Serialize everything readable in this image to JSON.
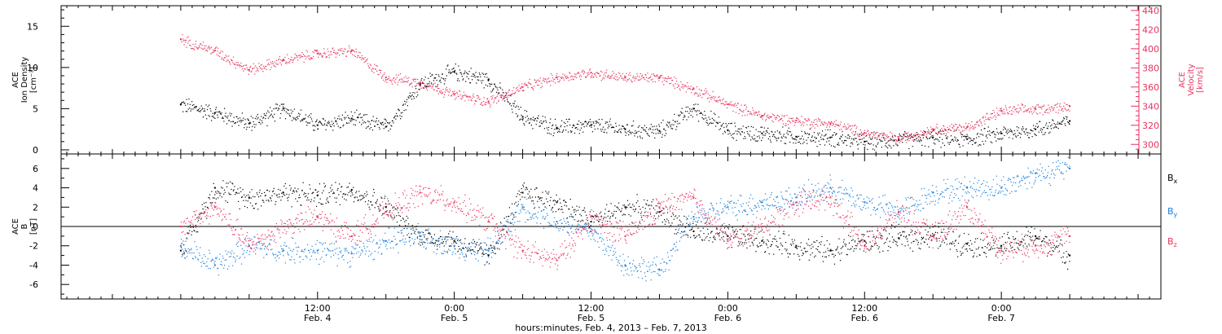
{
  "chart_data": [
    {
      "type": "scatter",
      "panel": "top",
      "ylabel_left": [
        "ACE",
        "Ion Density",
        "[cm⁻³]"
      ],
      "ylabel_right": [
        "ACE",
        "Velocity",
        "[km/s]"
      ],
      "y_left_ticks": [
        "0",
        "5",
        "10",
        "15"
      ],
      "y_left_range": [
        -0.5,
        17.5
      ],
      "y_right_ticks": [
        "300",
        "320",
        "340",
        "360",
        "380",
        "400",
        "420",
        "440"
      ],
      "y_right_range": [
        290,
        445
      ],
      "series": [
        {
          "key": "density",
          "color": "#000000",
          "axis": "left",
          "x": [
            0,
            3,
            6,
            9,
            12,
            15,
            18,
            21,
            24,
            27,
            30,
            33,
            36,
            39,
            42,
            45,
            48,
            51,
            54,
            57,
            60,
            63,
            66,
            69,
            72,
            75,
            78
          ],
          "y": [
            5.5,
            4.5,
            3.2,
            5.0,
            3.0,
            3.8,
            2.8,
            8.0,
            9.5,
            8.5,
            4.0,
            2.7,
            3.0,
            2.5,
            2.3,
            5.0,
            2.4,
            2.0,
            1.6,
            1.5,
            1.0,
            1.2,
            1.5,
            1.3,
            2.0,
            2.5,
            3.5
          ]
        },
        {
          "key": "velocity",
          "color": "#e8325e",
          "axis": "right",
          "x": [
            0,
            3,
            6,
            9,
            12,
            15,
            18,
            21,
            24,
            27,
            30,
            33,
            36,
            39,
            42,
            45,
            48,
            51,
            54,
            57,
            60,
            63,
            66,
            69,
            72,
            75,
            78
          ],
          "y": [
            410,
            398,
            378,
            388,
            395,
            398,
            370,
            365,
            352,
            345,
            360,
            370,
            375,
            370,
            370,
            358,
            342,
            330,
            325,
            322,
            312,
            306,
            316,
            318,
            335,
            337,
            340
          ]
        }
      ]
    },
    {
      "type": "scatter",
      "panel": "bottom",
      "ylabel_left": [
        "ACE",
        "B",
        "[nT]"
      ],
      "y_ticks": [
        "-6",
        "-4",
        "-2",
        "0",
        "2",
        "4",
        "6"
      ],
      "y_range": [
        -7.5,
        7.5
      ],
      "zero_line": true,
      "series": [
        {
          "name": "B",
          "sub": "x",
          "color": "#000000",
          "x": [
            0,
            3,
            6,
            9,
            12,
            15,
            18,
            21,
            24,
            27,
            30,
            33,
            36,
            39,
            42,
            45,
            48,
            51,
            54,
            57,
            60,
            63,
            66,
            69,
            72,
            75,
            78
          ],
          "y": [
            -2.5,
            4.0,
            3.0,
            3.5,
            3.2,
            3.8,
            2.0,
            -1.0,
            -1.5,
            -3.0,
            3.5,
            2.5,
            0.5,
            2.0,
            1.5,
            -0.5,
            -1.0,
            -1.5,
            -2.0,
            -2.5,
            -1.5,
            -1.2,
            -1.0,
            -1.8,
            -2.0,
            -1.0,
            -3.0
          ]
        },
        {
          "name": "B",
          "sub": "y",
          "color": "#1a7fdc",
          "x": [
            0,
            3,
            6,
            9,
            12,
            15,
            18,
            21,
            24,
            27,
            30,
            33,
            36,
            39,
            42,
            45,
            48,
            51,
            54,
            57,
            60,
            63,
            66,
            69,
            72,
            75,
            78
          ],
          "y": [
            -2.0,
            -4.0,
            -2.0,
            -2.5,
            -2.5,
            -2.8,
            -1.5,
            -1.0,
            -2.0,
            -2.5,
            2.0,
            0.5,
            -0.5,
            -4.0,
            -4.5,
            1.0,
            2.0,
            2.5,
            3.0,
            4.0,
            2.5,
            1.5,
            3.5,
            4.0,
            4.0,
            5.5,
            6.0
          ]
        },
        {
          "name": "B",
          "sub": "z",
          "color": "#e8325e",
          "x": [
            0,
            3,
            6,
            9,
            12,
            15,
            18,
            21,
            24,
            27,
            30,
            33,
            36,
            39,
            42,
            45,
            48,
            51,
            54,
            57,
            60,
            63,
            66,
            69,
            72,
            75,
            78
          ],
          "y": [
            0.0,
            2.0,
            -2.0,
            0.0,
            1.0,
            -1.0,
            1.5,
            3.5,
            2.5,
            0.5,
            -2.5,
            -3.5,
            1.0,
            -1.0,
            2.0,
            3.0,
            -1.5,
            0.0,
            2.5,
            3.0,
            -2.0,
            1.5,
            -1.0,
            2.0,
            -2.5,
            -2.0,
            -1.0
          ]
        }
      ]
    }
  ],
  "x_axis": {
    "ticks": [
      {
        "hour": 12,
        "time": "12:00",
        "date": "Feb. 4"
      },
      {
        "hour": 24,
        "time": "0:00",
        "date": "Feb. 5"
      },
      {
        "hour": 36,
        "time": "12:00",
        "date": "Feb. 5"
      },
      {
        "hour": 48,
        "time": "0:00",
        "date": "Feb. 6"
      },
      {
        "hour": 60,
        "time": "12:00",
        "date": "Feb. 6"
      },
      {
        "hour": 72,
        "time": "0:00",
        "date": "Feb. 7"
      }
    ],
    "range_hours": [
      -10.5,
      86
    ],
    "title": "hours:minutes, Feb.  4, 2013 – Feb.  7, 2013"
  }
}
